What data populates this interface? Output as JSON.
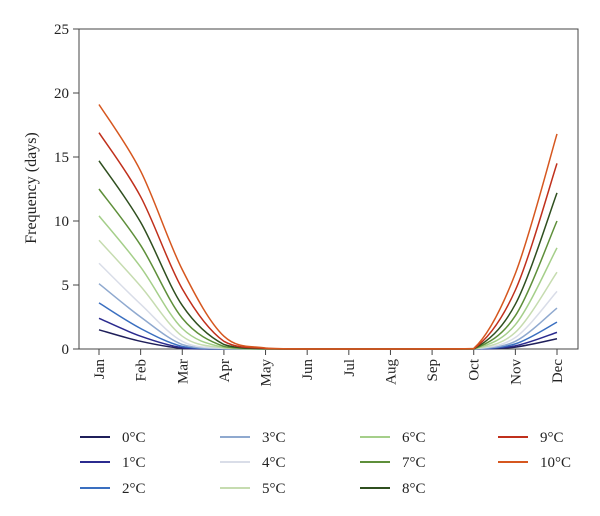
{
  "chart_data": {
    "type": "line",
    "title": "",
    "xlabel": "",
    "ylabel": "Frequency (days)",
    "ylim": [
      0,
      25
    ],
    "yticks": [
      "0",
      "5",
      "10",
      "15",
      "20",
      "25"
    ],
    "categories": [
      "Jan",
      "Feb",
      "Mar",
      "Apr",
      "May",
      "Jun",
      "Jul",
      "Aug",
      "Sep",
      "Oct",
      "Nov",
      "Dec"
    ],
    "grid": false,
    "legend_position": "bottom",
    "series": [
      {
        "name": "0°C",
        "color": "#1f1f5a",
        "values": [
          1.5,
          0.6,
          0.05,
          0,
          0,
          0,
          0,
          0,
          0,
          0,
          0.15,
          0.8
        ]
      },
      {
        "name": "1°C",
        "color": "#2b2b8f",
        "values": [
          2.4,
          1.0,
          0.1,
          0,
          0,
          0,
          0,
          0,
          0,
          0,
          0.25,
          1.3
        ]
      },
      {
        "name": "2°C",
        "color": "#3a6fc0",
        "values": [
          3.6,
          1.6,
          0.2,
          0,
          0,
          0,
          0,
          0,
          0,
          0,
          0.4,
          2.1
        ]
      },
      {
        "name": "3°C",
        "color": "#8fa9cf",
        "values": [
          5.1,
          2.5,
          0.35,
          0.02,
          0,
          0,
          0,
          0,
          0,
          0,
          0.6,
          3.2
        ]
      },
      {
        "name": "4°C",
        "color": "#d9dde8",
        "values": [
          6.7,
          3.5,
          0.6,
          0.04,
          0,
          0,
          0,
          0,
          0,
          0,
          0.9,
          4.5
        ]
      },
      {
        "name": "5°C",
        "color": "#c6dcb0",
        "values": [
          8.5,
          4.9,
          1.0,
          0.08,
          0,
          0,
          0,
          0,
          0,
          0,
          1.3,
          6.0
        ]
      },
      {
        "name": "6°C",
        "color": "#a5cf8a",
        "values": [
          10.4,
          6.4,
          1.6,
          0.12,
          0,
          0,
          0,
          0,
          0,
          0,
          1.9,
          7.9
        ]
      },
      {
        "name": "7°C",
        "color": "#5e8f3a",
        "values": [
          12.5,
          8.1,
          2.4,
          0.2,
          0.01,
          0,
          0,
          0,
          0,
          0,
          2.6,
          10.0
        ]
      },
      {
        "name": "8°C",
        "color": "#2f4f1f",
        "values": [
          14.7,
          9.9,
          3.4,
          0.35,
          0.02,
          0,
          0,
          0,
          0,
          0.01,
          3.5,
          12.2
        ]
      },
      {
        "name": "9°C",
        "color": "#c0301c",
        "values": [
          16.9,
          11.9,
          4.7,
          0.6,
          0.04,
          0,
          0,
          0,
          0,
          0.02,
          4.6,
          14.5
        ]
      },
      {
        "name": "10°C",
        "color": "#d6571f",
        "values": [
          19.1,
          13.9,
          6.2,
          1.0,
          0.08,
          0,
          0,
          0,
          0.01,
          0.04,
          5.9,
          16.8
        ]
      }
    ]
  }
}
